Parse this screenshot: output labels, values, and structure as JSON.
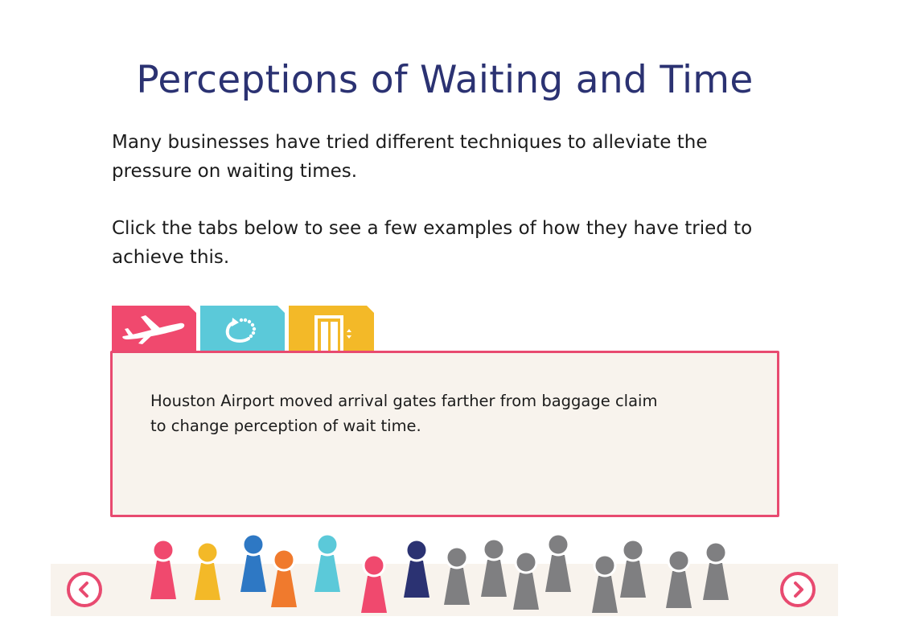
{
  "page": {
    "title": "Perceptions of Waiting and Time",
    "intro_1": "Many businesses have tried different techniques to alleviate the pressure on waiting times.",
    "intro_2": "Click the tabs below to see a few examples of how they have tried to achieve this."
  },
  "tabs": [
    {
      "icon": "airplane-icon",
      "color": "#f0496e",
      "selected": true
    },
    {
      "icon": "cycle-arrow-icon",
      "color": "#5bc9d9",
      "selected": false
    },
    {
      "icon": "elevator-icon",
      "color": "#f3b928",
      "selected": false
    }
  ],
  "panel": {
    "text": "Houston Airport moved arrival gates farther from baggage claim to change perception of wait time."
  },
  "navigation": {
    "prev_icon": "chevron-left-icon",
    "next_icon": "chevron-right-icon",
    "accent": "#e84a70"
  },
  "colors": {
    "title": "#2b3272",
    "panel_background": "#f8f3ed",
    "panel_border": "#e84a70",
    "people": [
      "#f0496e",
      "#f3b928",
      "#2e78c4",
      "#f07a2d",
      "#5bc9d9",
      "#2b3272",
      "#7f7f81"
    ]
  }
}
